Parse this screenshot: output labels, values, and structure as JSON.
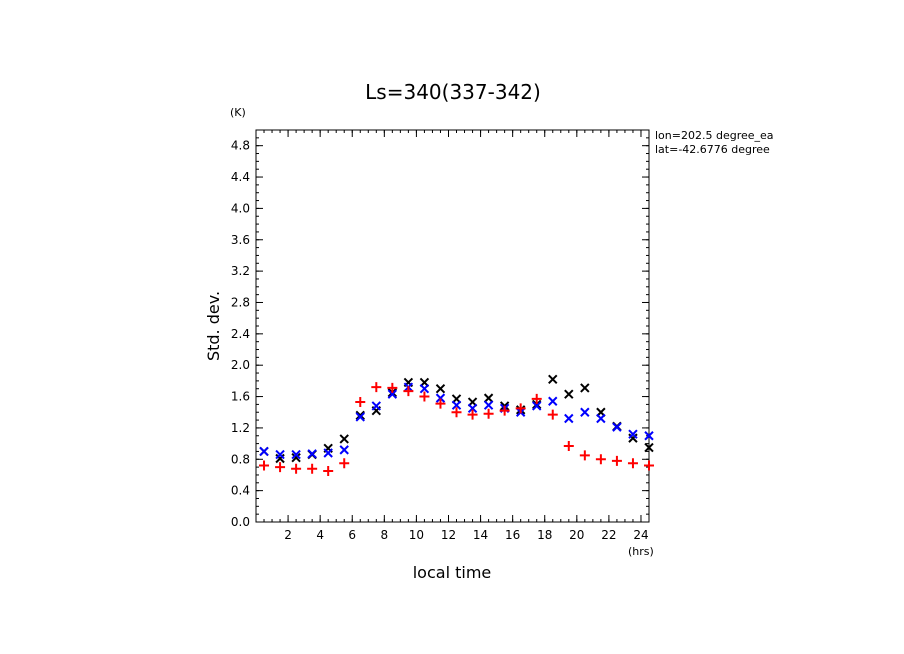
{
  "chart_data": {
    "type": "scatter",
    "title": "Ls=340(337-342)",
    "xlabel": "local time",
    "ylabel": "Std. dev.",
    "x_unit": "(hrs)",
    "y_unit": "(K)",
    "annotations": [
      "lon=202.5 degree_ea",
      "lat=-42.6776 degree"
    ],
    "xlim": [
      0.0,
      24.5
    ],
    "ylim": [
      0.0,
      5.0
    ],
    "x_ticks": [
      "2",
      "4",
      "6",
      "8",
      "10",
      "12",
      "14",
      "16",
      "18",
      "20",
      "22",
      "24"
    ],
    "y_ticks": [
      "0.0",
      "0.4",
      "0.8",
      "1.2",
      "1.6",
      "2.0",
      "2.4",
      "2.8",
      "3.2",
      "3.6",
      "4.0",
      "4.4",
      "4.8"
    ],
    "grid": false,
    "series": [
      {
        "color": "#000000",
        "marker": "x",
        "points": [
          [
            0.5,
            0.9
          ],
          [
            1.5,
            0.81
          ],
          [
            2.5,
            0.82
          ],
          [
            3.5,
            0.86
          ],
          [
            4.5,
            0.94
          ],
          [
            5.5,
            1.06
          ],
          [
            6.5,
            1.36
          ],
          [
            7.5,
            1.42
          ],
          [
            8.5,
            1.65
          ],
          [
            9.5,
            1.78
          ],
          [
            10.5,
            1.78
          ],
          [
            11.5,
            1.7
          ],
          [
            12.5,
            1.57
          ],
          [
            13.5,
            1.53
          ],
          [
            14.5,
            1.58
          ],
          [
            15.5,
            1.48
          ],
          [
            16.5,
            1.43
          ],
          [
            17.5,
            1.5
          ],
          [
            18.5,
            1.82
          ],
          [
            19.5,
            1.63
          ],
          [
            20.5,
            1.71
          ],
          [
            21.5,
            1.4
          ],
          [
            22.5,
            1.22
          ],
          [
            23.5,
            1.07
          ],
          [
            24.5,
            0.95
          ]
        ]
      },
      {
        "color": "#0000ff",
        "marker": "x",
        "points": [
          [
            0.5,
            0.9
          ],
          [
            1.5,
            0.86
          ],
          [
            2.5,
            0.86
          ],
          [
            3.5,
            0.87
          ],
          [
            4.5,
            0.88
          ],
          [
            5.5,
            0.92
          ],
          [
            6.5,
            1.34
          ],
          [
            7.5,
            1.48
          ],
          [
            8.5,
            1.63
          ],
          [
            9.5,
            1.72
          ],
          [
            10.5,
            1.7
          ],
          [
            11.5,
            1.58
          ],
          [
            12.5,
            1.49
          ],
          [
            13.5,
            1.45
          ],
          [
            14.5,
            1.49
          ],
          [
            15.5,
            1.45
          ],
          [
            16.5,
            1.4
          ],
          [
            17.5,
            1.48
          ],
          [
            18.5,
            1.54
          ],
          [
            19.5,
            1.32
          ],
          [
            20.5,
            1.4
          ],
          [
            21.5,
            1.32
          ],
          [
            22.5,
            1.21
          ],
          [
            23.5,
            1.12
          ],
          [
            24.5,
            1.1
          ]
        ]
      },
      {
        "color": "#ff0000",
        "marker": "+",
        "points": [
          [
            0.5,
            0.72
          ],
          [
            1.5,
            0.7
          ],
          [
            2.5,
            0.68
          ],
          [
            3.5,
            0.68
          ],
          [
            4.5,
            0.65
          ],
          [
            5.5,
            0.75
          ],
          [
            6.5,
            1.53
          ],
          [
            7.5,
            1.72
          ],
          [
            8.5,
            1.71
          ],
          [
            9.5,
            1.67
          ],
          [
            10.5,
            1.6
          ],
          [
            11.5,
            1.51
          ],
          [
            12.5,
            1.4
          ],
          [
            13.5,
            1.37
          ],
          [
            14.5,
            1.38
          ],
          [
            15.5,
            1.42
          ],
          [
            16.5,
            1.45
          ],
          [
            17.5,
            1.57
          ],
          [
            18.5,
            1.37
          ],
          [
            19.5,
            0.97
          ],
          [
            20.5,
            0.85
          ],
          [
            21.5,
            0.8
          ],
          [
            22.5,
            0.78
          ],
          [
            23.5,
            0.75
          ],
          [
            24.5,
            0.72
          ]
        ]
      }
    ]
  }
}
